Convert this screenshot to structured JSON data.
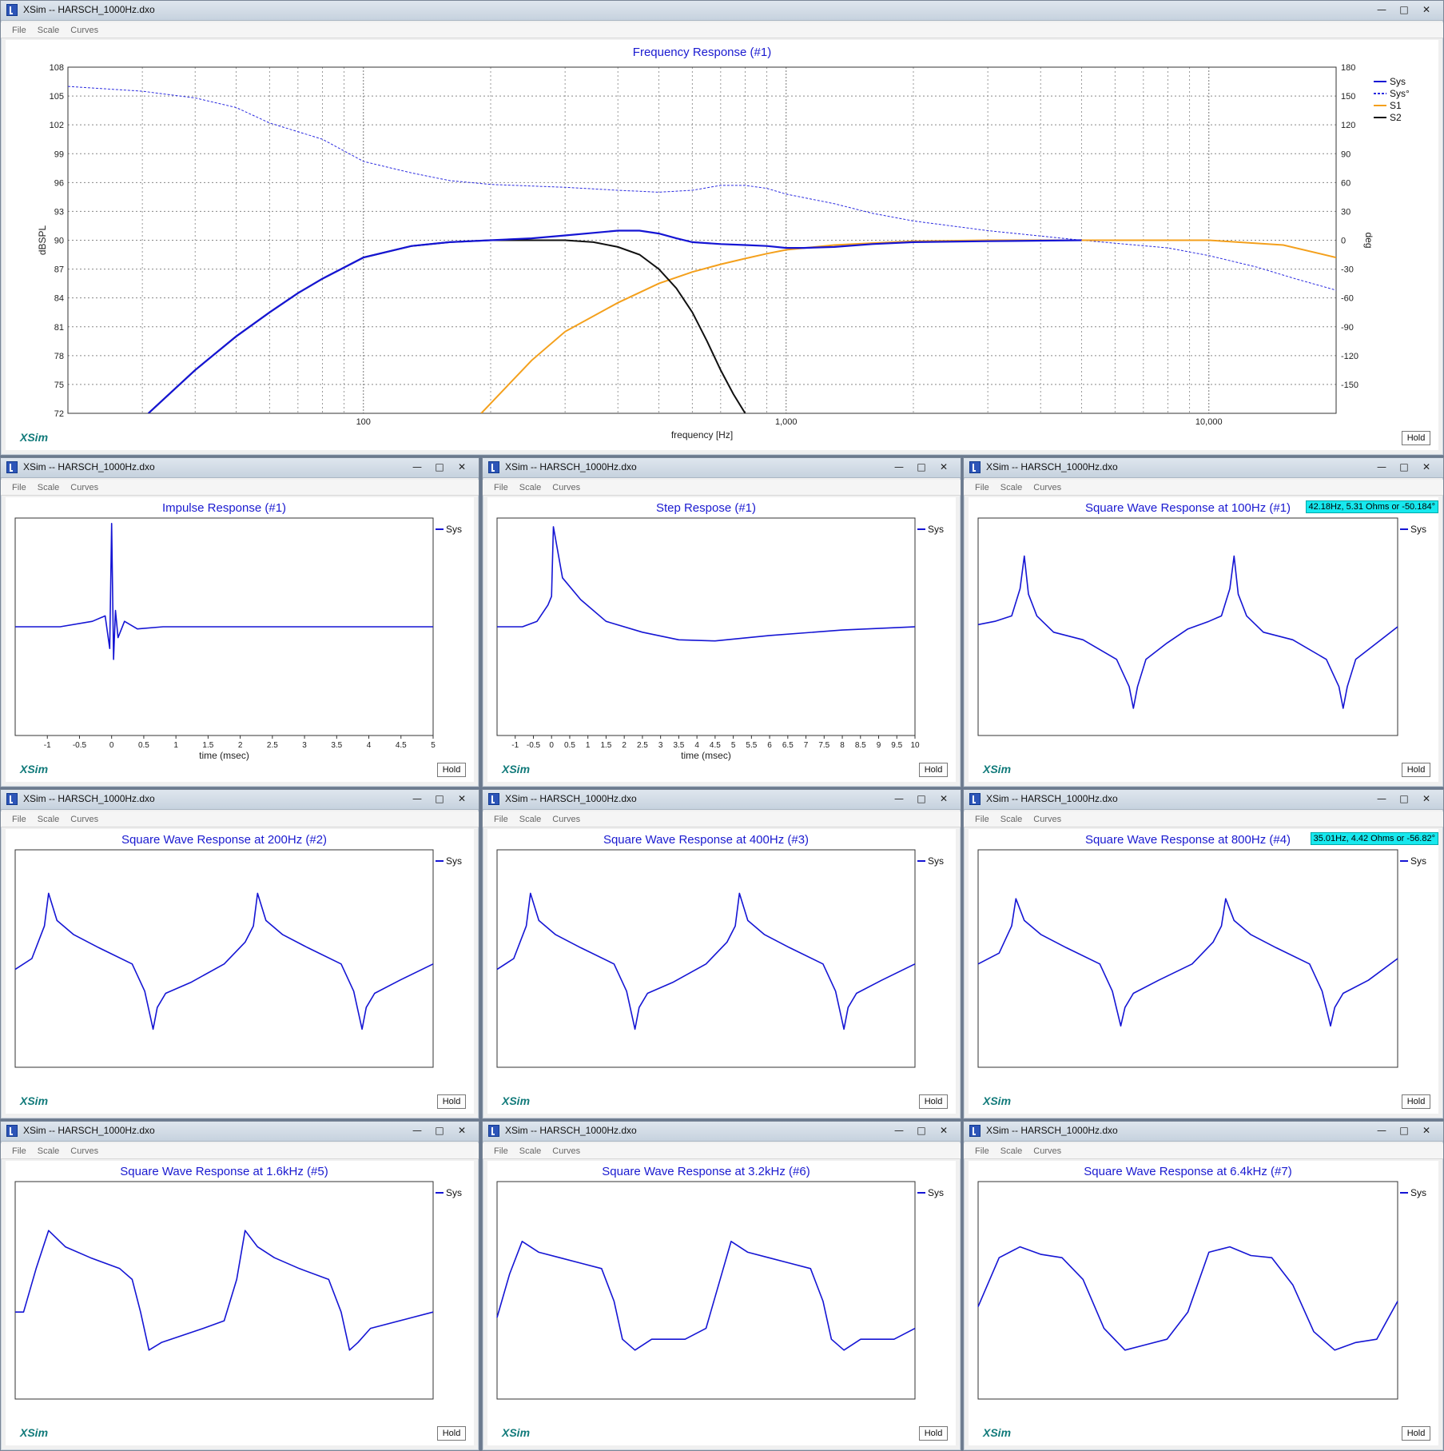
{
  "window_title": "XSim -- HARSCH_1000Hz.dxo",
  "menu": [
    "File",
    "Scale",
    "Curves"
  ],
  "brand": "XSim",
  "hold_label": "Hold",
  "window_buttons": {
    "minimize": "—",
    "maximize": "□",
    "close": "✕"
  },
  "colors": {
    "sys": "#1515d4",
    "sys_phase": "#2a2ae0",
    "s1": "#f4a01c",
    "s2": "#101010",
    "grid": "#888888",
    "tooltip": "#18e8ee",
    "brand": "#117a7a"
  },
  "main": {
    "chart_data": {
      "type": "line",
      "title": "Frequency Response (#1)",
      "xlabel": "frequency [Hz]",
      "ylabel": "dBSPL",
      "y2label": "deg",
      "xscale": "log",
      "xlim": [
        20,
        20000
      ],
      "ylim": [
        72,
        108
      ],
      "y2lim": [
        -180,
        180
      ],
      "xticks": [
        100,
        1000,
        10000
      ],
      "xtick_labels": [
        "100",
        "1,000",
        "10,000"
      ],
      "yticks": [
        "72",
        "75",
        "78",
        "81",
        "84",
        "87",
        "90",
        "93",
        "96",
        "99",
        "102",
        "105",
        "108"
      ],
      "y2ticks": [
        "-150",
        "-120",
        "-90",
        "-60",
        "-30",
        "0",
        "30",
        "60",
        "90",
        "120",
        "150",
        "180"
      ],
      "legend_position": "top-right",
      "legend": [
        {
          "name": "Sys",
          "color": "#1515d4",
          "style": "solid"
        },
        {
          "name": "Sys°",
          "color": "#2a2ae0",
          "style": "dashed"
        },
        {
          "name": "S1",
          "color": "#f4a01c",
          "style": "solid"
        },
        {
          "name": "S2",
          "color": "#101010",
          "style": "solid"
        }
      ],
      "series": [
        {
          "name": "Sys",
          "axis": "left",
          "x": [
            31,
            40,
            50,
            60,
            70,
            80,
            100,
            130,
            160,
            200,
            250,
            300,
            400,
            450,
            500,
            550,
            600,
            700,
            800,
            900,
            1000,
            1100,
            1300,
            1600,
            2000,
            3000,
            5000
          ],
          "y": [
            72,
            76.5,
            80,
            82.5,
            84.5,
            86,
            88.2,
            89.4,
            89.8,
            90,
            90.2,
            90.5,
            91,
            91,
            90.7,
            90.2,
            89.8,
            89.6,
            89.5,
            89.4,
            89.2,
            89.2,
            89.3,
            89.6,
            89.8,
            89.9,
            90
          ]
        },
        {
          "name": "Sys°",
          "axis": "right",
          "x": [
            20,
            30,
            40,
            50,
            60,
            80,
            100,
            130,
            160,
            200,
            300,
            400,
            500,
            600,
            700,
            800,
            900,
            1000,
            1300,
            1600,
            2000,
            3000,
            5000,
            8000,
            10000,
            13000,
            16000,
            20000
          ],
          "y": [
            160,
            155,
            148,
            138,
            122,
            105,
            82,
            70,
            62,
            58,
            55,
            52,
            50,
            52,
            57,
            57,
            54,
            48,
            38,
            28,
            20,
            10,
            0,
            -8,
            -16,
            -28,
            -40,
            -52
          ]
        },
        {
          "name": "S1",
          "axis": "left",
          "x": [
            190,
            250,
            300,
            400,
            500,
            600,
            700,
            800,
            900,
            1000,
            1300,
            1600,
            2000,
            3000,
            5000,
            10000,
            15000,
            20000
          ],
          "y": [
            72,
            77.5,
            80.5,
            83.5,
            85.5,
            86.7,
            87.5,
            88.1,
            88.6,
            89,
            89.5,
            89.7,
            89.9,
            90,
            90,
            90,
            89.5,
            88.2
          ]
        },
        {
          "name": "S2",
          "axis": "left",
          "x": [
            31,
            40,
            50,
            60,
            70,
            80,
            100,
            130,
            160,
            200,
            250,
            300,
            350,
            400,
            450,
            500,
            550,
            600,
            650,
            700,
            750,
            800
          ],
          "y": [
            72,
            76.5,
            80,
            82.5,
            84.5,
            86,
            88.2,
            89.4,
            89.8,
            90,
            90,
            90,
            89.8,
            89.3,
            88.5,
            87,
            85,
            82.5,
            79.5,
            76.5,
            74,
            72
          ]
        }
      ]
    }
  },
  "panels": [
    {
      "title": "Impulse Response (#1)",
      "legend": "Sys",
      "xlabel": "time (msec)",
      "xticks": [
        "-1",
        "-0.5",
        "0",
        "0.5",
        "1",
        "1.5",
        "2",
        "2.5",
        "3",
        "3.5",
        "4",
        "4.5",
        "5"
      ],
      "chart_data": {
        "type": "line",
        "xlim": [
          -1.5,
          5
        ],
        "ylim": [
          -1,
          1
        ],
        "series": [
          {
            "name": "Sys",
            "x": [
              -1.5,
              -0.8,
              -0.3,
              -0.1,
              -0.03,
              0.0,
              0.03,
              0.06,
              0.1,
              0.2,
              0.4,
              0.8,
              1.5,
              3,
              5
            ],
            "y": [
              0.0,
              0.0,
              0.05,
              0.1,
              -0.2,
              0.95,
              -0.3,
              0.15,
              -0.1,
              0.05,
              -0.02,
              0.0,
              0.0,
              0.0,
              0.0
            ]
          }
        ]
      }
    },
    {
      "title": "Step Respose (#1)",
      "legend": "Sys",
      "xlabel": "time (msec)",
      "xticks": [
        "-1",
        "-0.5",
        "0",
        "0.5",
        "1",
        "1.5",
        "2",
        "2.5",
        "3",
        "3.5",
        "4",
        "4.5",
        "5",
        "5.5",
        "6",
        "6.5",
        "7",
        "7.5",
        "8",
        "8.5",
        "9",
        "9.5",
        "10"
      ],
      "chart_data": {
        "type": "line",
        "xlim": [
          -1.5,
          10
        ],
        "ylim": [
          -1,
          1
        ],
        "series": [
          {
            "name": "Sys",
            "x": [
              -1.5,
              -0.8,
              -0.4,
              -0.1,
              0.0,
              0.05,
              0.3,
              0.8,
              1.5,
              2.5,
              3.5,
              4.5,
              6,
              8,
              10
            ],
            "y": [
              0.0,
              0.0,
              0.05,
              0.2,
              0.28,
              0.92,
              0.45,
              0.25,
              0.05,
              -0.05,
              -0.12,
              -0.13,
              -0.08,
              -0.03,
              0.0
            ]
          }
        ]
      }
    },
    {
      "title": "Square Wave Response at 100Hz (#1)",
      "legend": "Sys",
      "tooltip": "42.18Hz, 5.31 Ohms or -50.184°",
      "chart_data": {
        "type": "line",
        "ylim": [
          -1,
          1
        ],
        "series": [
          {
            "name": "Sys",
            "x": [
              0,
              0.04,
              0.08,
              0.1,
              0.11,
              0.12,
              0.14,
              0.18,
              0.25,
              0.33,
              0.36,
              0.37,
              0.38,
              0.4,
              0.45,
              0.5,
              0.55,
              0.58,
              0.6,
              0.61,
              0.62,
              0.64,
              0.68,
              0.75,
              0.83,
              0.86,
              0.87,
              0.88,
              0.9,
              0.95,
              1
            ],
            "y": [
              0.02,
              0.05,
              0.1,
              0.35,
              0.65,
              0.3,
              0.1,
              -0.05,
              -0.12,
              -0.3,
              -0.55,
              -0.75,
              -0.55,
              -0.3,
              -0.15,
              -0.02,
              0.05,
              0.1,
              0.35,
              0.65,
              0.3,
              0.1,
              -0.05,
              -0.12,
              -0.3,
              -0.55,
              -0.75,
              -0.55,
              -0.3,
              -0.15,
              0.0
            ]
          }
        ]
      }
    },
    {
      "title": "Square Wave Response at 200Hz (#2)",
      "legend": "Sys",
      "chart_data": {
        "type": "line",
        "ylim": [
          -1,
          1
        ],
        "series": [
          {
            "name": "Sys",
            "x": [
              0,
              0.04,
              0.07,
              0.08,
              0.1,
              0.14,
              0.2,
              0.28,
              0.31,
              0.33,
              0.34,
              0.36,
              0.42,
              0.5,
              0.55,
              0.57,
              0.58,
              0.6,
              0.64,
              0.7,
              0.78,
              0.81,
              0.83,
              0.84,
              0.86,
              0.92,
              1
            ],
            "y": [
              -0.1,
              0.0,
              0.3,
              0.6,
              0.35,
              0.22,
              0.1,
              -0.05,
              -0.3,
              -0.65,
              -0.45,
              -0.32,
              -0.22,
              -0.05,
              0.15,
              0.3,
              0.6,
              0.35,
              0.22,
              0.1,
              -0.05,
              -0.3,
              -0.65,
              -0.45,
              -0.32,
              -0.2,
              -0.05
            ]
          }
        ]
      }
    },
    {
      "title": "Square Wave Response at 400Hz (#3)",
      "legend": "Sys",
      "chart_data": {
        "type": "line",
        "ylim": [
          -1,
          1
        ],
        "series": [
          {
            "name": "Sys",
            "x": [
              0,
              0.04,
              0.07,
              0.08,
              0.1,
              0.14,
              0.2,
              0.28,
              0.31,
              0.33,
              0.34,
              0.36,
              0.42,
              0.5,
              0.55,
              0.57,
              0.58,
              0.6,
              0.64,
              0.7,
              0.78,
              0.81,
              0.83,
              0.84,
              0.86,
              0.92,
              1
            ],
            "y": [
              -0.1,
              0.0,
              0.3,
              0.6,
              0.35,
              0.22,
              0.1,
              -0.05,
              -0.3,
              -0.65,
              -0.45,
              -0.32,
              -0.22,
              -0.05,
              0.15,
              0.3,
              0.6,
              0.35,
              0.22,
              0.1,
              -0.05,
              -0.3,
              -0.65,
              -0.45,
              -0.32,
              -0.2,
              -0.05
            ]
          }
        ]
      }
    },
    {
      "title": "Square Wave Response at 800Hz (#4)",
      "legend": "Sys",
      "tooltip": "35.01Hz, 4.42 Ohms or -56.82°",
      "chart_data": {
        "type": "line",
        "ylim": [
          -1,
          1
        ],
        "series": [
          {
            "name": "Sys",
            "x": [
              0,
              0.05,
              0.08,
              0.09,
              0.11,
              0.15,
              0.21,
              0.29,
              0.32,
              0.34,
              0.35,
              0.37,
              0.43,
              0.51,
              0.56,
              0.58,
              0.59,
              0.61,
              0.65,
              0.71,
              0.79,
              0.82,
              0.84,
              0.85,
              0.87,
              0.93,
              1
            ],
            "y": [
              -0.05,
              0.05,
              0.3,
              0.55,
              0.35,
              0.22,
              0.1,
              -0.05,
              -0.3,
              -0.62,
              -0.45,
              -0.32,
              -0.2,
              -0.05,
              0.15,
              0.3,
              0.55,
              0.35,
              0.22,
              0.1,
              -0.05,
              -0.3,
              -0.62,
              -0.45,
              -0.32,
              -0.2,
              0.0
            ]
          }
        ]
      }
    },
    {
      "title": "Square Wave Response at 1.6kHz (#5)",
      "legend": "Sys",
      "chart_data": {
        "type": "line",
        "ylim": [
          -1,
          1
        ],
        "series": [
          {
            "name": "Sys",
            "x": [
              0,
              0.02,
              0.05,
              0.08,
              0.12,
              0.18,
              0.25,
              0.28,
              0.3,
              0.32,
              0.35,
              0.45,
              0.5,
              0.53,
              0.55,
              0.58,
              0.62,
              0.68,
              0.75,
              0.78,
              0.8,
              0.82,
              0.85,
              0.95,
              1
            ],
            "y": [
              -0.2,
              -0.2,
              0.2,
              0.55,
              0.4,
              0.3,
              0.2,
              0.1,
              -0.2,
              -0.55,
              -0.48,
              -0.35,
              -0.28,
              0.1,
              0.55,
              0.4,
              0.3,
              0.2,
              0.1,
              -0.2,
              -0.55,
              -0.48,
              -0.35,
              -0.25,
              -0.2
            ]
          }
        ]
      }
    },
    {
      "title": "Square Wave Response at 3.2kHz (#6)",
      "legend": "Sys",
      "chart_data": {
        "type": "line",
        "ylim": [
          -1,
          1
        ],
        "series": [
          {
            "name": "Sys",
            "x": [
              0,
              0.03,
              0.06,
              0.1,
              0.15,
              0.2,
              0.25,
              0.28,
              0.3,
              0.33,
              0.37,
              0.45,
              0.5,
              0.53,
              0.56,
              0.6,
              0.65,
              0.7,
              0.75,
              0.78,
              0.8,
              0.83,
              0.87,
              0.95,
              1
            ],
            "y": [
              -0.25,
              0.15,
              0.45,
              0.35,
              0.3,
              0.25,
              0.2,
              -0.1,
              -0.45,
              -0.55,
              -0.45,
              -0.45,
              -0.35,
              0.05,
              0.45,
              0.35,
              0.3,
              0.25,
              0.2,
              -0.1,
              -0.45,
              -0.55,
              -0.45,
              -0.45,
              -0.35
            ]
          }
        ]
      }
    },
    {
      "title": "Square Wave Response at 6.4kHz (#7)",
      "legend": "Sys",
      "chart_data": {
        "type": "line",
        "ylim": [
          -1,
          1
        ],
        "series": [
          {
            "name": "Sys",
            "x": [
              0,
              0.05,
              0.1,
              0.15,
              0.2,
              0.25,
              0.3,
              0.35,
              0.4,
              0.45,
              0.5,
              0.55,
              0.6,
              0.65,
              0.7,
              0.75,
              0.8,
              0.85,
              0.9,
              0.95,
              1
            ],
            "y": [
              -0.15,
              0.3,
              0.4,
              0.33,
              0.3,
              0.1,
              -0.35,
              -0.55,
              -0.5,
              -0.45,
              -0.2,
              0.35,
              0.4,
              0.32,
              0.3,
              0.05,
              -0.38,
              -0.55,
              -0.48,
              -0.45,
              -0.1
            ]
          }
        ]
      }
    }
  ]
}
